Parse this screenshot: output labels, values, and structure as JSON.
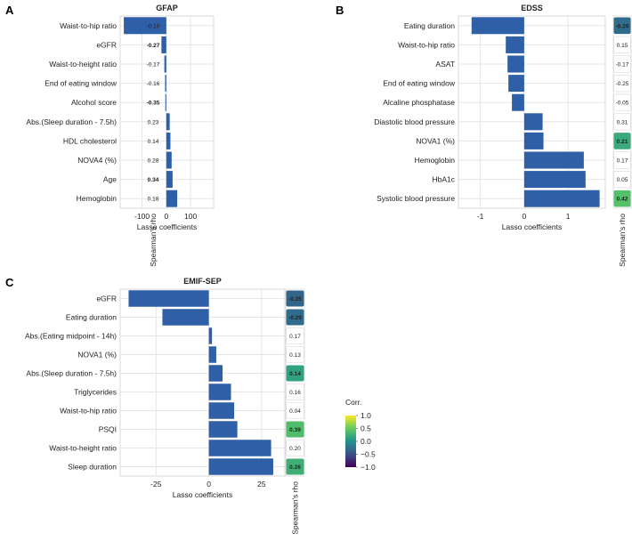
{
  "chart_data": [
    {
      "panel_label": "A",
      "type": "bar",
      "orientation": "horizontal",
      "title": "GFAP",
      "xlabel": "Lasso coefficients",
      "xlim": [
        -190,
        195
      ],
      "xticks": [
        -100,
        0,
        100
      ],
      "xtick_labels": [
        "-100",
        "0",
        "100"
      ],
      "grid": true,
      "categories": [
        "Waist-to-hip ratio",
        "eGFR",
        "Waist-to-height ratio",
        "End of eating window",
        "Alcohol score",
        "Abs.(Sleep duration - 7.5h)",
        "HDL cholesterol",
        "NOVA4 (%)",
        "Age",
        "Hemoglobin"
      ],
      "values": [
        -175,
        -20,
        -8,
        -5,
        -4,
        14,
        17,
        22,
        26,
        45
      ],
      "rho_label": "Spearman's rho",
      "rho": [
        -0.1,
        -0.27,
        -0.17,
        -0.16,
        -0.35,
        0.23,
        0.14,
        0.28,
        0.34,
        0.18
      ],
      "rho_text": [
        "-0.10",
        "-0.27",
        "-0.17",
        "-0.16",
        "-0.35",
        "0.23",
        "0.14",
        "0.28",
        "0.34",
        "0.18"
      ],
      "rho_highlight": [
        false,
        true,
        false,
        false,
        true,
        false,
        false,
        false,
        true,
        false
      ]
    },
    {
      "panel_label": "B",
      "type": "bar",
      "orientation": "horizontal",
      "title": "EDSS",
      "xlabel": "Lasso coefficients",
      "xlim": [
        -1.5,
        1.85
      ],
      "xticks": [
        -1,
        0,
        1
      ],
      "xtick_labels": [
        "-1",
        "0",
        "1"
      ],
      "grid": true,
      "categories": [
        "Eating duration",
        "Waist-to-hip ratio",
        "ASAT",
        "End of eating window",
        "Alcaline phosphatase",
        "Diastolic blood pressure",
        "NOVA1 (%)",
        "Hemoglobin",
        "HbA1c",
        "Systolic blood pressure"
      ],
      "values": [
        -1.2,
        -0.42,
        -0.38,
        -0.36,
        -0.28,
        0.42,
        0.44,
        1.36,
        1.4,
        1.72
      ],
      "rho_label": "Spearman's rho",
      "rho": [
        -0.29,
        0.15,
        -0.17,
        -0.25,
        -0.05,
        0.31,
        0.21,
        0.17,
        0.05,
        0.42
      ],
      "rho_text": [
        "-0.29",
        "0.15",
        "-0.17",
        "-0.25",
        "-0.05",
        "0.31",
        "0.21",
        "0.17",
        "0.05",
        "0.42"
      ],
      "rho_highlight": [
        true,
        false,
        false,
        false,
        false,
        false,
        true,
        false,
        false,
        true
      ]
    },
    {
      "panel_label": "C",
      "type": "bar",
      "orientation": "horizontal",
      "title": "EMIF-SEP",
      "xlabel": "Lasso coefficients",
      "xlim": [
        -42,
        36
      ],
      "xticks": [
        -25,
        0,
        25
      ],
      "xtick_labels": [
        "-25",
        "0",
        "25"
      ],
      "grid": true,
      "categories": [
        "eGFR",
        "Eating duration",
        "Abs.(Eating midpoint - 14h)",
        "NOVA1 (%)",
        "Abs.(Sleep duration - 7.5h)",
        "Triglycerides",
        "Waist-to-hip ratio",
        "PSQI",
        "Waist-to-height ratio",
        "Sleep duration"
      ],
      "values": [
        -38,
        -22,
        1.5,
        3.5,
        6.5,
        10.5,
        12,
        13.5,
        29.5,
        30.5
      ],
      "rho_label": "Spearman's rho",
      "rho": [
        -0.35,
        -0.29,
        0.17,
        0.13,
        0.14,
        0.16,
        0.04,
        0.39,
        0.2,
        0.26
      ],
      "rho_text": [
        "-0.35",
        "-0.29",
        "0.17",
        "0.13",
        "0.14",
        "0.16",
        "0.04",
        "0.39",
        "0.20",
        "0.26"
      ],
      "rho_highlight": [
        true,
        true,
        false,
        false,
        true,
        false,
        false,
        true,
        false,
        true
      ]
    }
  ],
  "legend": {
    "title": "Corr.",
    "range": [
      -1,
      1
    ],
    "ticks": [
      1.0,
      0.5,
      0.0,
      -0.5,
      -1.0
    ],
    "tick_labels": [
      "1.0",
      "0.5",
      "0.0",
      "−0.5",
      "−1.0"
    ]
  },
  "colors": {
    "bar": "#2f5fa6",
    "grid": "#e6e6e6",
    "frame": "#cfcfcf",
    "text": "#222222"
  }
}
